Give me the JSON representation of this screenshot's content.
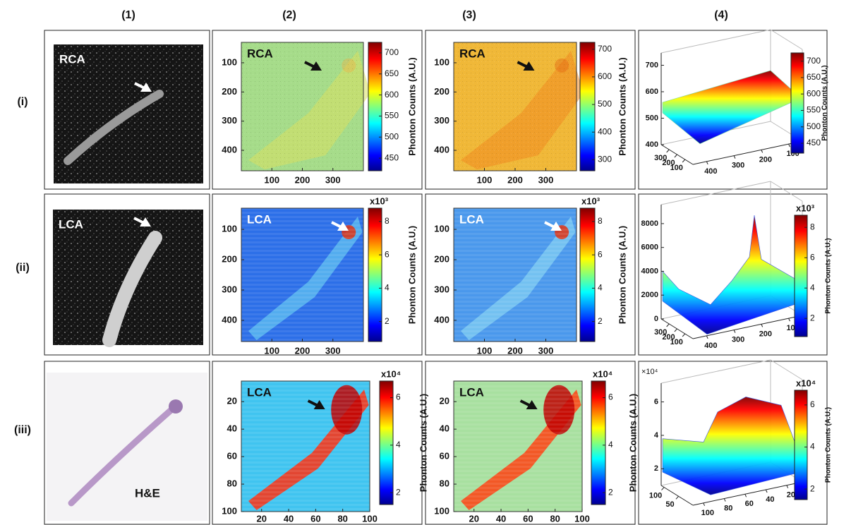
{
  "column_headers": [
    "(1)",
    "(2)",
    "(3)",
    "(4)"
  ],
  "row_headers": [
    "(i)",
    "(ii)",
    "(iii)"
  ],
  "colorbar_title": "Phonton Counts (A.U.)",
  "rows": [
    {
      "photo": {
        "label": "RCA"
      },
      "map2": {
        "label": "RCA",
        "xlim": [
          0,
          400
        ],
        "xticks": [
          100,
          200,
          300
        ],
        "ylim": [
          30,
          470
        ],
        "yticks": [
          100,
          200,
          300,
          400
        ],
        "clim": [
          420,
          725
        ],
        "cticks": [
          450,
          500,
          550,
          600,
          650,
          700
        ]
      },
      "map3": {
        "label": "RCA",
        "xlim": [
          0,
          400
        ],
        "xticks": [
          100,
          200,
          300
        ],
        "ylim": [
          30,
          470
        ],
        "yticks": [
          100,
          200,
          300,
          400
        ],
        "clim": [
          260,
          725
        ],
        "cticks": [
          300,
          400,
          500,
          600,
          700
        ]
      },
      "surface": {
        "zlim": [
          400,
          720
        ],
        "zticks": [
          400,
          500,
          600,
          700
        ],
        "alim": [
          400,
          0
        ],
        "aticks": [
          300,
          200,
          100
        ],
        "blim": [
          450,
          50
        ],
        "bticks": [
          400,
          300,
          200,
          100
        ],
        "clim": [
          420,
          725
        ],
        "cticks": [
          450,
          500,
          550,
          600,
          650,
          700
        ]
      }
    },
    {
      "photo": {
        "label": "LCA"
      },
      "map2": {
        "label": "LCA",
        "exponent": "x10³",
        "xlim": [
          0,
          400
        ],
        "xticks": [
          100,
          200,
          300
        ],
        "ylim": [
          30,
          470
        ],
        "yticks": [
          100,
          200,
          300,
          400
        ],
        "clim": [
          0.8,
          8.8
        ],
        "cticks": [
          2,
          4,
          6,
          8
        ]
      },
      "map3": {
        "label": "LCA",
        "exponent": "x10³",
        "xlim": [
          0,
          400
        ],
        "xticks": [
          100,
          200,
          300
        ],
        "ylim": [
          30,
          470
        ],
        "yticks": [
          100,
          200,
          300,
          400
        ],
        "clim": [
          0.8,
          8.8
        ],
        "cticks": [
          2,
          4,
          6,
          8
        ]
      },
      "surface": {
        "exponent": "x10³",
        "zlim": [
          0,
          9000
        ],
        "zticks": [
          0,
          2000,
          4000,
          6000,
          8000
        ],
        "alim": [
          400,
          0
        ],
        "aticks": [
          300,
          200,
          100
        ],
        "blim": [
          450,
          50
        ],
        "bticks": [
          400,
          300,
          200,
          100
        ],
        "clim": [
          0.8,
          8.8
        ],
        "cticks": [
          2,
          4,
          6,
          8
        ]
      }
    },
    {
      "photo": {
        "label": "H&E"
      },
      "map2": {
        "label": "LCA",
        "exponent": "x10⁴",
        "xlim": [
          5,
          100
        ],
        "xticks": [
          20,
          40,
          60,
          80,
          100
        ],
        "ylim": [
          5,
          100
        ],
        "yticks": [
          20,
          40,
          60,
          80,
          100
        ],
        "clim": [
          1.5,
          6.7
        ],
        "cticks": [
          2,
          4,
          6
        ]
      },
      "map3": {
        "label": "LCA",
        "exponent": "x10⁴",
        "xlim": [
          5,
          100
        ],
        "xticks": [
          20,
          40,
          60,
          80,
          100
        ],
        "ylim": [
          5,
          100
        ],
        "yticks": [
          20,
          40,
          60,
          80,
          100
        ],
        "clim": [
          1.5,
          6.7
        ],
        "cticks": [
          2,
          4,
          6
        ]
      },
      "surface": {
        "exponent": "x10⁴",
        "z_exponent": "×10⁴",
        "zlim": [
          1,
          6.7
        ],
        "zticks": [
          2,
          4,
          6
        ],
        "alim": [
          110,
          0
        ],
        "aticks": [
          100,
          50
        ],
        "blim": [
          110,
          5
        ],
        "bticks": [
          100,
          80,
          60,
          40,
          20
        ],
        "clim": [
          1.5,
          6.7
        ],
        "cticks": [
          2,
          4,
          6
        ]
      }
    }
  ]
}
